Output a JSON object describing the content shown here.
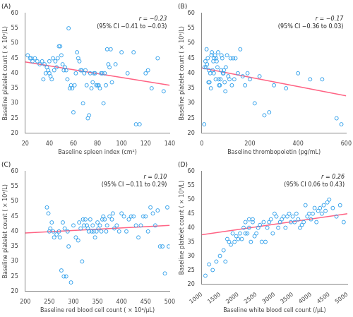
{
  "chart_data": [
    {
      "type": "scatter",
      "title": "(A)",
      "xlabel": "Baseline spleen index (cm²)",
      "ylabel": "Baseline platelet count ( × 10⁹/L)",
      "annotations": [
        "r = −0.23",
        "(95% CI −0.41 to −0.03)"
      ],
      "xlim": [
        20,
        140
      ],
      "ylim": [
        20,
        60
      ],
      "xticks": [
        20,
        40,
        60,
        80,
        100,
        120,
        140
      ],
      "yticks": [
        20,
        25,
        30,
        35,
        40,
        45,
        50,
        55,
        60
      ],
      "grid": false,
      "series": [
        {
          "type": "scatter",
          "marker": "circle",
          "x": [
            22,
            24,
            25,
            26,
            28,
            30,
            32,
            34,
            35,
            36,
            37,
            38,
            39,
            40,
            40,
            41,
            42,
            43,
            44,
            45,
            46,
            47,
            48,
            49,
            50,
            51,
            52,
            53,
            54,
            55,
            56,
            57,
            58,
            59,
            60,
            61,
            62,
            63,
            64,
            65,
            66,
            67,
            68,
            69,
            70,
            71,
            72,
            73,
            74,
            75,
            76,
            77,
            78,
            79,
            80,
            81,
            82,
            83,
            84,
            85,
            86,
            87,
            88,
            89,
            90,
            91,
            92,
            95,
            100,
            105,
            110,
            112,
            115,
            120,
            122,
            125,
            130,
            135
          ],
          "values": [
            46,
            45,
            45,
            44,
            45,
            44,
            43,
            44,
            38,
            43,
            40,
            42,
            41,
            40,
            44,
            39,
            38,
            45,
            41,
            44,
            42,
            45,
            49,
            49,
            46,
            43,
            41,
            42,
            41,
            38,
            55,
            35,
            36,
            35,
            27,
            36,
            40,
            47,
            45,
            44,
            41,
            41,
            30,
            40,
            41,
            36,
            25,
            26,
            40,
            35,
            37,
            40,
            40,
            36,
            36,
            36,
            35,
            40,
            40,
            30,
            40,
            36,
            48,
            43,
            42,
            48,
            37,
            43,
            47,
            40,
            47,
            23,
            23,
            40,
            41,
            35,
            45,
            34
          ]
        },
        {
          "type": "line",
          "line_style": "solid",
          "x": [
            20,
            140
          ],
          "values": [
            43.8,
            36.0
          ]
        }
      ]
    },
    {
      "type": "scatter",
      "title": "(B)",
      "xlabel": "Baseline thrombopoietin (pg/mL)",
      "ylabel": "Baseline platelet count ( × 10⁹/L)",
      "annotations": [
        "r = −0.17",
        "(95% CI −0.36 to 0.03)"
      ],
      "xlim": [
        0,
        600
      ],
      "ylim": [
        20,
        60
      ],
      "xticks": [
        0,
        200,
        400,
        600
      ],
      "yticks": [
        20,
        25,
        30,
        35,
        40,
        45,
        50,
        55,
        60
      ],
      "grid": false,
      "series": [
        {
          "type": "scatter",
          "marker": "circle",
          "x": [
            10,
            12,
            15,
            18,
            20,
            22,
            25,
            28,
            30,
            32,
            35,
            38,
            40,
            42,
            45,
            48,
            50,
            52,
            55,
            58,
            60,
            62,
            65,
            68,
            70,
            72,
            75,
            78,
            80,
            82,
            85,
            88,
            90,
            92,
            95,
            98,
            100,
            105,
            110,
            115,
            120,
            125,
            130,
            135,
            140,
            150,
            160,
            170,
            180,
            190,
            200,
            220,
            240,
            260,
            280,
            300,
            350,
            400,
            450,
            500,
            560,
            580
          ],
          "values": [
            23,
            42,
            44,
            42,
            48,
            43,
            45,
            37,
            41,
            37,
            40,
            35,
            46,
            47,
            41,
            44,
            40,
            45,
            46,
            38,
            45,
            44,
            42,
            47,
            38,
            36,
            36,
            38,
            41,
            46,
            45,
            40,
            40,
            41,
            37,
            34,
            42,
            46,
            39,
            38,
            45,
            36,
            45,
            38,
            45,
            40,
            48,
            39,
            36,
            40,
            38,
            30,
            39,
            26,
            27,
            36,
            35,
            40,
            38,
            38,
            25,
            23
          ]
        },
        {
          "type": "line",
          "line_style": "solid",
          "x": [
            0,
            600
          ],
          "values": [
            41.8,
            32.5
          ]
        }
      ]
    },
    {
      "type": "scatter",
      "title": "(C)",
      "xlabel": "Baseline red blood cell count ( × 10⁴/μL)",
      "ylabel": "Baseline platelet count ( × 10⁹/L)",
      "annotations": [
        "r = 0.10",
        "(95% CI −0.11 to 0.29)"
      ],
      "xlim": [
        200,
        500
      ],
      "ylim": [
        20,
        60
      ],
      "xticks": [
        200,
        250,
        300,
        350,
        400,
        450,
        500
      ],
      "yticks": [
        20,
        25,
        30,
        35,
        40,
        45,
        50,
        55,
        60
      ],
      "grid": false,
      "series": [
        {
          "type": "scatter",
          "marker": "circle",
          "x": [
            245,
            248,
            250,
            252,
            255,
            258,
            260,
            265,
            270,
            272,
            275,
            278,
            280,
            282,
            285,
            288,
            290,
            295,
            300,
            305,
            310,
            312,
            315,
            318,
            320,
            322,
            325,
            328,
            330,
            332,
            335,
            338,
            340,
            342,
            345,
            348,
            350,
            352,
            355,
            358,
            360,
            362,
            365,
            368,
            370,
            375,
            380,
            382,
            385,
            390,
            395,
            400,
            405,
            410,
            415,
            420,
            425,
            430,
            435,
            440,
            445,
            450,
            455,
            460,
            465,
            470,
            475,
            480,
            485,
            490,
            495,
            498
          ],
          "values": [
            48,
            46,
            40,
            41,
            43,
            40,
            38,
            39,
            40,
            38,
            27,
            43,
            25,
            41,
            25,
            40,
            35,
            23,
            42,
            38,
            37,
            43,
            41,
            30,
            44,
            42,
            44,
            42,
            41,
            40,
            44,
            40,
            42,
            40,
            38,
            40,
            43,
            41,
            42,
            40,
            44,
            45,
            44,
            40,
            42,
            45,
            44,
            46,
            41,
            42,
            40,
            46,
            45,
            40,
            44,
            45,
            45,
            42,
            38,
            42,
            45,
            45,
            40,
            48,
            46,
            42,
            47,
            35,
            35,
            26,
            48,
            35
          ]
        },
        {
          "type": "line",
          "line_style": "solid",
          "x": [
            200,
            500
          ],
          "values": [
            39.5,
            42.0
          ]
        }
      ]
    },
    {
      "type": "scatter",
      "title": "(D)",
      "xlabel": "Baseline white blood cell count (/μL)",
      "ylabel": "Baseline platelet count ( × 10⁹/L)",
      "annotations": [
        "r = 0.26",
        "(95% CI 0.06 to 0.43)"
      ],
      "xlim": [
        1000,
        5000
      ],
      "ylim": [
        20,
        60
      ],
      "xticks": [
        1000,
        1500,
        2000,
        2500,
        3000,
        3500,
        4000,
        4500,
        5000
      ],
      "yticks": [
        20,
        25,
        30,
        35,
        40,
        45,
        50,
        55,
        60
      ],
      "grid": false,
      "series": [
        {
          "type": "scatter",
          "marker": "circle",
          "x": [
            1100,
            1200,
            1300,
            1400,
            1500,
            1600,
            1650,
            1700,
            1750,
            1800,
            1850,
            1900,
            1950,
            2000,
            2050,
            2100,
            2150,
            2200,
            2200,
            2250,
            2300,
            2300,
            2350,
            2400,
            2400,
            2450,
            2500,
            2550,
            2600,
            2650,
            2700,
            2750,
            2800,
            2850,
            2900,
            2950,
            3000,
            3050,
            3100,
            3150,
            3200,
            3250,
            3300,
            3350,
            3400,
            3450,
            3500,
            3550,
            3600,
            3650,
            3700,
            3750,
            3800,
            3850,
            3900,
            3950,
            4000,
            4050,
            4100,
            4150,
            4200,
            4250,
            4300,
            4350,
            4400,
            4450,
            4500,
            4600,
            4700,
            4800,
            4900
          ],
          "values": [
            23,
            27,
            25,
            28,
            30,
            32,
            28,
            36,
            35,
            34,
            38,
            35,
            37,
            36,
            38,
            36,
            40,
            38,
            42,
            38,
            40,
            43,
            35,
            42,
            43,
            37,
            38,
            40,
            41,
            35,
            42,
            35,
            40,
            42,
            43,
            38,
            45,
            44,
            40,
            42,
            43,
            44,
            40,
            44,
            45,
            42,
            44,
            42,
            45,
            43,
            40,
            41,
            42,
            48,
            44,
            45,
            43,
            45,
            47,
            42,
            46,
            47,
            45,
            48,
            46,
            49,
            50,
            47,
            44,
            48,
            42
          ]
        },
        {
          "type": "line",
          "line_style": "solid",
          "x": [
            1000,
            5000
          ],
          "values": [
            37.5,
            45.0
          ]
        }
      ]
    }
  ]
}
